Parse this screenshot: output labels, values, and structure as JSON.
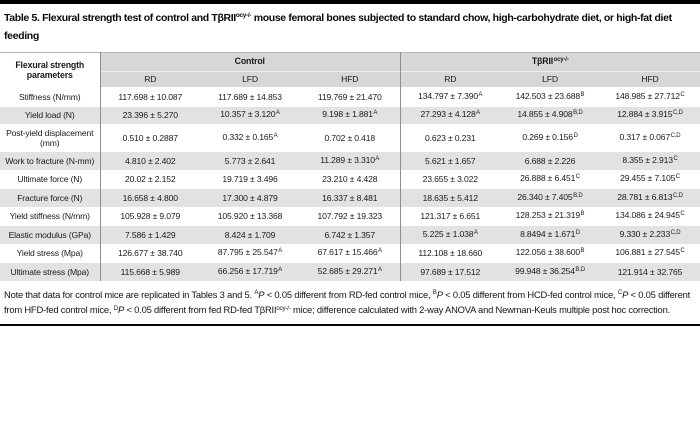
{
  "title": {
    "pre": "Table 5. Flexural strength test of control and TβRII",
    "sup": "ocy-/-",
    "post": " mouse femoral bones subjected to standard chow, high-carbohydrate diet, or high-fat diet feeding"
  },
  "table": {
    "param_header": "Flexural strength parameters",
    "groups": [
      {
        "label": "Control",
        "label_sup": "",
        "cols": [
          "RD",
          "LFD",
          "HFD"
        ]
      },
      {
        "label": "TβRII",
        "label_sup": "ocy-/-",
        "cols": [
          "RD",
          "LFD",
          "HFD"
        ]
      }
    ],
    "rows": [
      {
        "param": "Stiffness (N/mm)",
        "cells": [
          {
            "v": "117.698 ± 10.087"
          },
          {
            "v": "117.689 ± 14.853"
          },
          {
            "v": "119.769 ± 21.470"
          },
          {
            "v": "134.797 ± 7.390",
            "s": "A"
          },
          {
            "v": "142.503 ± 23.688",
            "s": "B"
          },
          {
            "v": "148.985 ± 27.712",
            "s": "C"
          }
        ]
      },
      {
        "param": "Yield load (N)",
        "cells": [
          {
            "v": "23.396 ± 5.270"
          },
          {
            "v": "10.357 ± 3.120",
            "s": "A"
          },
          {
            "v": "9.198 ± 1.881",
            "s": "A"
          },
          {
            "v": "27.293 ± 4.128",
            "s": "A"
          },
          {
            "v": "14.855 ± 4.908",
            "s": "B,D"
          },
          {
            "v": "12.884 ± 3.915",
            "s": "C,D"
          }
        ]
      },
      {
        "param": "Post-yield displacement (mm)",
        "cells": [
          {
            "v": "0.510 ± 0.2887"
          },
          {
            "v": "0.332 ± 0.165",
            "s": "A"
          },
          {
            "v": "0.702 ± 0.418"
          },
          {
            "v": "0.623 ± 0.231"
          },
          {
            "v": "0.269 ± 0.156",
            "s": "D"
          },
          {
            "v": "0.317 ± 0.067",
            "s": "C,D"
          }
        ]
      },
      {
        "param": "Work to fracture (N-mm)",
        "cells": [
          {
            "v": "4.810 ± 2.402"
          },
          {
            "v": "5.773 ± 2.641"
          },
          {
            "v": "11.289 ± 3.310",
            "s": "A"
          },
          {
            "v": "5.621 ± 1.657"
          },
          {
            "v": "6.688 ± 2.226"
          },
          {
            "v": "8.355 ± 2.913",
            "s": "C"
          }
        ]
      },
      {
        "param": "Ultimate force (N)",
        "cells": [
          {
            "v": "20.02 ± 2.152"
          },
          {
            "v": "19.719 ± 3.496"
          },
          {
            "v": "23.210 ± 4.428"
          },
          {
            "v": "23.655 ± 3.022"
          },
          {
            "v": "26.888 ± 6.451",
            "s": "C"
          },
          {
            "v": "29.455 ± 7.105",
            "s": "C"
          }
        ]
      },
      {
        "param": "Fracture force (N)",
        "cells": [
          {
            "v": "16.658 ± 4.800"
          },
          {
            "v": "17.300 ± 4.879"
          },
          {
            "v": "16.337 ± 8.481"
          },
          {
            "v": "18.635 ± 5.412"
          },
          {
            "v": "26.340 ± 7.405",
            "s": "B,D"
          },
          {
            "v": "28.781 ± 6.813",
            "s": "C,D"
          }
        ]
      },
      {
        "param": "Yield stiffness (N/mm)",
        "cells": [
          {
            "v": "105.928 ± 9.079"
          },
          {
            "v": "105.920 ± 13.368"
          },
          {
            "v": "107.792 ± 19.323"
          },
          {
            "v": "121.317 ± 6.651"
          },
          {
            "v": "128.253 ± 21.319",
            "s": "B"
          },
          {
            "v": "134.086 ± 24.945",
            "s": "C"
          }
        ]
      },
      {
        "param": "Elastic modulus (GPa)",
        "cells": [
          {
            "v": "7.586 ± 1.429"
          },
          {
            "v": "8.424 ± 1.709"
          },
          {
            "v": "6.742 ± 1.357"
          },
          {
            "v": "5.225 ± 1.038",
            "s": "A"
          },
          {
            "v": "8.8494 ± 1.671",
            "s": "D"
          },
          {
            "v": "9.330 ± 2.233",
            "s": "C,D"
          }
        ]
      },
      {
        "param": "Yield stress (Mpa)",
        "cells": [
          {
            "v": "126.677 ± 38.740"
          },
          {
            "v": "87.795 ± 25.547",
            "s": "A"
          },
          {
            "v": "67.617 ± 15.466",
            "s": "A"
          },
          {
            "v": "112.108 ± 18.660"
          },
          {
            "v": "122.056 ± 38.600",
            "s": "B"
          },
          {
            "v": "106.881 ± 27.545",
            "s": "C"
          }
        ]
      },
      {
        "param": "Ultimate stress (Mpa)",
        "cells": [
          {
            "v": "115.668 ± 5.989"
          },
          {
            "v": "66.256 ± 17.719",
            "s": "A"
          },
          {
            "v": "52.685 ± 29.271",
            "s": "A"
          },
          {
            "v": "97.689 ± 17.512"
          },
          {
            "v": "99.948 ± 36.254",
            "s": "B,D"
          },
          {
            "v": "121.914 ± 32.765"
          }
        ]
      }
    ]
  },
  "footnote": {
    "segments": [
      {
        "t": "Note that data for control mice are replicated in Tables 3 and 5. "
      },
      {
        "t": "A",
        "s": "sup"
      },
      {
        "t": "P",
        "s": "i"
      },
      {
        "t": " < 0.05 different from RD-fed control mice, "
      },
      {
        "t": "B",
        "s": "sup"
      },
      {
        "t": "P",
        "s": "i"
      },
      {
        "t": " < 0.05 different from HCD-fed control mice, "
      },
      {
        "t": "C",
        "s": "sup"
      },
      {
        "t": "P",
        "s": "i"
      },
      {
        "t": " < 0.05 different from HFD-fed control mice, "
      },
      {
        "t": "D",
        "s": "sup"
      },
      {
        "t": "P",
        "s": "i"
      },
      {
        "t": " < 0.05 different from fed RD-fed TβRII"
      },
      {
        "t": "ocy-/-",
        "s": "sup"
      },
      {
        "t": " mice; difference calculated with 2-way ANOVA and Newman-Keuls multiple post hoc correction."
      }
    ]
  },
  "colors": {
    "top_rule": "#000000",
    "bottom_rule": "#000000",
    "header_bg": "#d7d7d7",
    "row_alt_bg": "#e2e2e2",
    "section_divider": "#8f8f8f",
    "text": "#111111"
  }
}
